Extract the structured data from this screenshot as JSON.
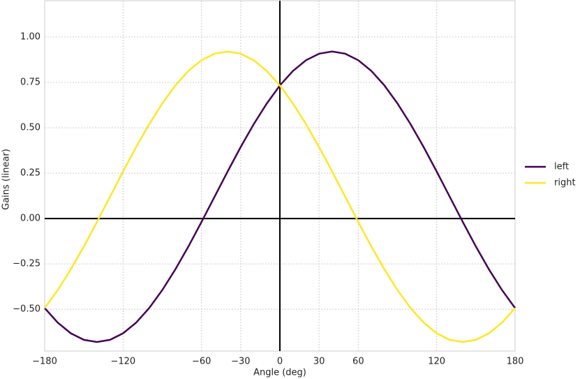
{
  "chart_data": {
    "type": "line",
    "xlabel": "Angle (deg)",
    "ylabel": "Gains (linear)",
    "x": [
      -180,
      -170,
      -160,
      -150,
      -140,
      -130,
      -120,
      -110,
      -100,
      -90,
      -80,
      -70,
      -60,
      -50,
      -40,
      -30,
      -20,
      -10,
      0,
      10,
      20,
      30,
      40,
      50,
      60,
      70,
      80,
      90,
      100,
      110,
      120,
      130,
      140,
      150,
      160,
      170,
      180
    ],
    "series": [
      {
        "name": "left",
        "color": "#440154",
        "values": [
          -0.493,
          -0.573,
          -0.632,
          -0.668,
          -0.68,
          -0.668,
          -0.632,
          -0.573,
          -0.493,
          -0.394,
          -0.28,
          -0.154,
          -0.019,
          0.12,
          0.259,
          0.394,
          0.52,
          0.634,
          0.733,
          0.813,
          0.872,
          0.908,
          0.92,
          0.908,
          0.872,
          0.813,
          0.733,
          0.634,
          0.52,
          0.394,
          0.259,
          0.12,
          -0.019,
          -0.154,
          -0.28,
          -0.394,
          -0.493
        ]
      },
      {
        "name": "right",
        "color": "#fde725",
        "values": [
          -0.493,
          -0.394,
          -0.28,
          -0.154,
          -0.019,
          0.12,
          0.259,
          0.394,
          0.52,
          0.634,
          0.733,
          0.813,
          0.872,
          0.908,
          0.92,
          0.908,
          0.872,
          0.813,
          0.733,
          0.634,
          0.52,
          0.394,
          0.259,
          0.12,
          -0.019,
          -0.154,
          -0.28,
          -0.394,
          -0.493,
          -0.573,
          -0.632,
          -0.668,
          -0.68,
          -0.668,
          -0.632,
          -0.573,
          -0.493
        ]
      }
    ],
    "xlim": [
      -180,
      180
    ],
    "ylim": [
      -0.73,
      1.2
    ],
    "xticks": [
      {
        "value": -180,
        "label": "−180"
      },
      {
        "value": -120,
        "label": "−120"
      },
      {
        "value": -60,
        "label": "−60"
      },
      {
        "value": -30,
        "label": "−30"
      },
      0,
      30,
      60,
      120,
      180
    ],
    "yticks": [
      {
        "value": -0.5,
        "label": "−0.50"
      },
      {
        "value": -0.25,
        "label": "−0.25"
      },
      {
        "value": 0,
        "label": "0.00"
      },
      {
        "value": 0.25,
        "label": "0.25"
      },
      {
        "value": 0.5,
        "label": "0.50"
      },
      {
        "value": 0.75,
        "label": "0.75"
      },
      {
        "value": 1,
        "label": "1.00"
      }
    ],
    "grid": true,
    "legend": "right"
  }
}
